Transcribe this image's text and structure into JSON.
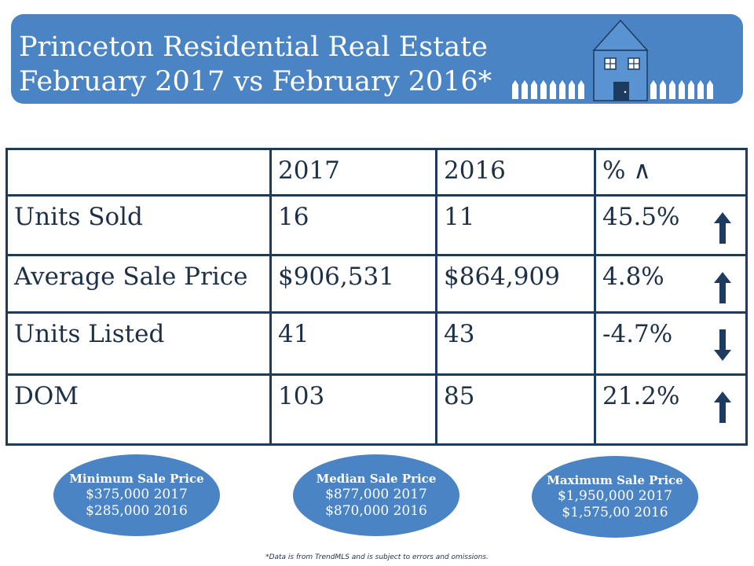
{
  "header": {
    "title_line1": "Princeton Residential Real Estate",
    "title_line2": "February 2017 vs February 2016*",
    "background_color": "#4a84c4",
    "illustration": "house-with-picket-fence-icon"
  },
  "table": {
    "columns": [
      "",
      "2017",
      "2016",
      "% ∧"
    ],
    "rows": [
      {
        "label": "Units Sold",
        "v2017": "16",
        "v2016": "11",
        "change": "45.5%",
        "direction": "up"
      },
      {
        "label": "Average Sale Price",
        "v2017": "$906,531",
        "v2016": "$864,909",
        "change": "4.8%",
        "direction": "up"
      },
      {
        "label": "Units Listed",
        "v2017": "41",
        "v2016": "43",
        "change": "-4.7%",
        "direction": "down"
      },
      {
        "label": "DOM",
        "v2017": "103",
        "v2016": "85",
        "change": "21.2%",
        "direction": "up"
      }
    ]
  },
  "summary": [
    {
      "title": "Minimum Sale Price",
      "line1": "$375,000 2017",
      "line2": "$285,000 2016"
    },
    {
      "title": "Median Sale Price",
      "line1": "$877,000 2017",
      "line2": "$870,000 2016"
    },
    {
      "title": "Maximum Sale Price",
      "line1": "$1,950,000 2017",
      "line2": "$1,575,00 2016"
    }
  ],
  "footnote": "*Data is from TrendMLS and is subject to errors and omissions.",
  "colors": {
    "accent": "#4a84c4",
    "dark": "#1d3b5e",
    "arrow": "#1d3b5e"
  }
}
